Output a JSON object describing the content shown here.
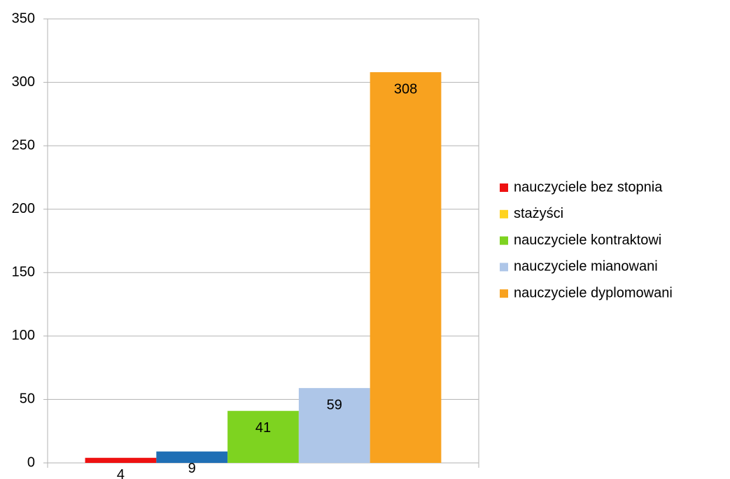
{
  "chart_data": {
    "type": "bar",
    "categories": [
      null
    ],
    "series": [
      {
        "name": "nauczyciele bez stopnia",
        "color": "#ee1111",
        "legend_color": "#ee1111",
        "values": [
          4
        ]
      },
      {
        "name": "stażyści",
        "color": "#1f6fb5",
        "legend_color": "#ffd320",
        "values": [
          9
        ]
      },
      {
        "name": "nauczyciele kontraktowi",
        "color": "#7ed320",
        "legend_color": "#7ed320",
        "values": [
          41
        ]
      },
      {
        "name": "nauczyciele mianowani",
        "color": "#aec6e8",
        "legend_color": "#aec6e8",
        "values": [
          59
        ]
      },
      {
        "name": "nauczyciele dyplomowani",
        "color": "#f8a21f",
        "legend_color": "#f8a21f",
        "values": [
          308
        ]
      }
    ],
    "ylim": [
      0,
      350
    ],
    "yticks": [
      0,
      50,
      100,
      150,
      200,
      250,
      300,
      350
    ],
    "grid": true,
    "legend": "right",
    "data_labels": true
  }
}
